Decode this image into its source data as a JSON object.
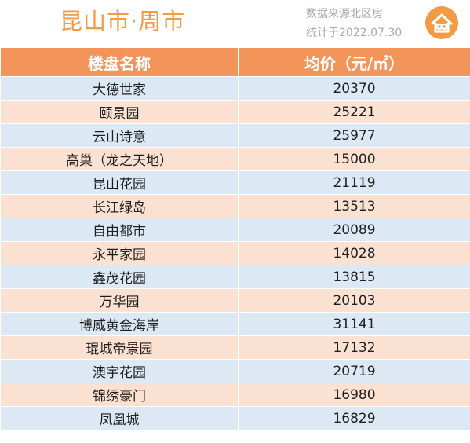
{
  "header": {
    "title": "昆山市·周市",
    "source": "数据来源北区房",
    "date": "统计于2022.07.30",
    "logo_icon": "house-logo-icon"
  },
  "colors": {
    "accent": "#f39a45",
    "header_row": "#f3955b",
    "row_blue": "#dce8f4",
    "row_pink": "#fae1d1"
  },
  "table": {
    "columns": [
      "楼盘名称",
      "均价（元/㎡）"
    ],
    "rows": [
      {
        "name": "大德世家",
        "price": "20370"
      },
      {
        "name": "颐景园",
        "price": "25221"
      },
      {
        "name": "云山诗意",
        "price": "25977"
      },
      {
        "name": "高巢（龙之天地）",
        "price": "15000"
      },
      {
        "name": "昆山花园",
        "price": "21119"
      },
      {
        "name": "长江绿岛",
        "price": "13513"
      },
      {
        "name": "自由都市",
        "price": "20089"
      },
      {
        "name": "永平家园",
        "price": "14028"
      },
      {
        "name": "鑫茂花园",
        "price": "13815"
      },
      {
        "name": "万华园",
        "price": "20103"
      },
      {
        "name": "博威黄金海岸",
        "price": "31141"
      },
      {
        "name": "琨城帝景园",
        "price": "17132"
      },
      {
        "name": "澳宇花园",
        "price": "20719"
      },
      {
        "name": "锦绣豪门",
        "price": "16980"
      },
      {
        "name": "凤凰城",
        "price": "16829"
      }
    ]
  }
}
